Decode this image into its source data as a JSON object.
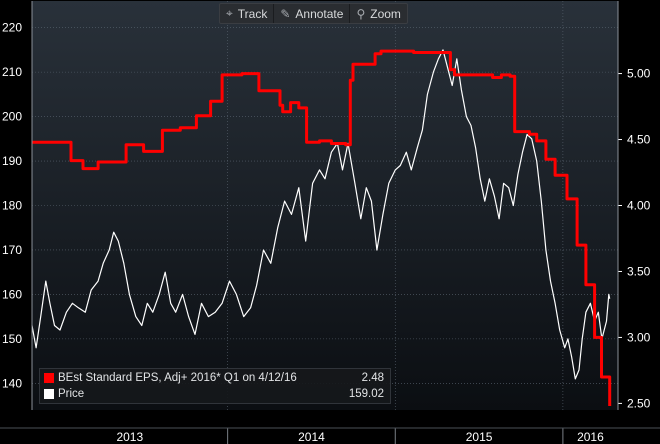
{
  "toolbar": {
    "items": [
      {
        "label": "Track",
        "icon": "crosshair-icon"
      },
      {
        "label": "Annotate",
        "icon": "pencil-icon"
      },
      {
        "label": "Zoom",
        "icon": "magnifier-icon"
      }
    ]
  },
  "legend": {
    "eps_label": "BEst Standard EPS, Adj+ 2016* Q1 on 4/12/16",
    "eps_value": "2.48",
    "price_label": "Price",
    "price_value": "159.02"
  },
  "colors": {
    "background": "#000000",
    "plot_top": "#29313a",
    "plot_bottom": "#0b0e12",
    "grid": "#5a6470",
    "eps_line": "#ff0000",
    "price_line": "#ffffff",
    "axis_text": "#ffffff"
  },
  "chart_data": {
    "type": "line",
    "title": "",
    "x_year_labels": [
      "2013",
      "2014",
      "2015",
      "2016"
    ],
    "x_range": [
      "2012-11-01",
      "2016-04-30"
    ],
    "y_left": {
      "series": "Price",
      "range": [
        134,
        226
      ],
      "ticks": [
        140,
        150,
        160,
        170,
        180,
        190,
        200,
        210,
        220
      ]
    },
    "y_right": {
      "series": "BEst Standard EPS, Adj+ 2016* Q1",
      "range": [
        2.45,
        5.55
      ],
      "ticks": [
        "2.50",
        "3.00",
        "3.50",
        "4.00",
        "4.50",
        "5.00"
      ]
    },
    "grid": true,
    "legend_position": "bottom-left",
    "series": [
      {
        "name": "BEst Standard EPS, Adj+ 2016* Q1",
        "axis": "right",
        "color": "#ff0000",
        "step": true,
        "points": [
          [
            "2012-11-01",
            4.48
          ],
          [
            "2013-01-25",
            4.34
          ],
          [
            "2013-02-20",
            4.28
          ],
          [
            "2013-03-25",
            4.33
          ],
          [
            "2013-05-25",
            4.46
          ],
          [
            "2013-07-02",
            4.41
          ],
          [
            "2013-08-12",
            4.57
          ],
          [
            "2013-09-20",
            4.59
          ],
          [
            "2013-10-25",
            4.68
          ],
          [
            "2013-11-25",
            4.79
          ],
          [
            "2013-12-20",
            4.99
          ],
          [
            "2014-02-01",
            5.0
          ],
          [
            "2014-03-10",
            4.87
          ],
          [
            "2014-04-25",
            4.76
          ],
          [
            "2014-05-01",
            4.71
          ],
          [
            "2014-05-18",
            4.78
          ],
          [
            "2014-06-05",
            4.74
          ],
          [
            "2014-06-22",
            4.48
          ],
          [
            "2014-07-20",
            4.49
          ],
          [
            "2014-08-15",
            4.47
          ],
          [
            "2014-09-15",
            4.46
          ],
          [
            "2014-09-25",
            4.95
          ],
          [
            "2014-10-01",
            5.07
          ],
          [
            "2014-11-18",
            5.15
          ],
          [
            "2014-12-01",
            5.17
          ],
          [
            "2015-02-10",
            5.16
          ],
          [
            "2015-04-10",
            5.16
          ],
          [
            "2015-05-01",
            5.03
          ],
          [
            "2015-05-10",
            4.99
          ],
          [
            "2015-08-01",
            4.97
          ],
          [
            "2015-08-20",
            4.99
          ],
          [
            "2015-09-08",
            4.98
          ],
          [
            "2015-09-18",
            4.56
          ],
          [
            "2015-10-20",
            4.54
          ],
          [
            "2015-11-05",
            4.49
          ],
          [
            "2015-11-25",
            4.35
          ],
          [
            "2015-12-15",
            4.23
          ],
          [
            "2016-01-10",
            4.05
          ],
          [
            "2016-02-01",
            3.7
          ],
          [
            "2016-02-20",
            3.4
          ],
          [
            "2016-03-10",
            3.0
          ],
          [
            "2016-03-25",
            2.7
          ],
          [
            "2016-04-12",
            2.48
          ]
        ]
      },
      {
        "name": "Price",
        "axis": "left",
        "color": "#ffffff",
        "step": false,
        "points": [
          [
            "2012-11-01",
            153
          ],
          [
            "2012-11-10",
            148
          ],
          [
            "2012-11-20",
            155
          ],
          [
            "2012-12-01",
            163
          ],
          [
            "2012-12-10",
            158
          ],
          [
            "2012-12-20",
            153
          ],
          [
            "2013-01-01",
            152
          ],
          [
            "2013-01-15",
            156
          ],
          [
            "2013-01-28",
            158
          ],
          [
            "2013-02-10",
            157
          ],
          [
            "2013-02-25",
            156
          ],
          [
            "2013-03-10",
            161
          ],
          [
            "2013-03-25",
            163
          ],
          [
            "2013-04-05",
            167
          ],
          [
            "2013-04-18",
            170
          ],
          [
            "2013-04-28",
            174
          ],
          [
            "2013-05-08",
            172
          ],
          [
            "2013-05-20",
            167
          ],
          [
            "2013-06-01",
            160
          ],
          [
            "2013-06-15",
            155
          ],
          [
            "2013-06-28",
            153
          ],
          [
            "2013-07-10",
            158
          ],
          [
            "2013-07-22",
            156
          ],
          [
            "2013-08-05",
            160
          ],
          [
            "2013-08-18",
            165
          ],
          [
            "2013-08-30",
            158
          ],
          [
            "2013-09-10",
            156
          ],
          [
            "2013-09-25",
            160
          ],
          [
            "2013-10-08",
            155
          ],
          [
            "2013-10-22",
            151
          ],
          [
            "2013-11-05",
            158
          ],
          [
            "2013-11-20",
            155
          ],
          [
            "2013-12-05",
            156
          ],
          [
            "2013-12-20",
            158
          ],
          [
            "2014-01-05",
            163
          ],
          [
            "2014-01-20",
            160
          ],
          [
            "2014-02-05",
            155
          ],
          [
            "2014-02-20",
            157
          ],
          [
            "2014-03-05",
            162
          ],
          [
            "2014-03-20",
            170
          ],
          [
            "2014-04-05",
            167
          ],
          [
            "2014-04-20",
            175
          ],
          [
            "2014-05-05",
            181
          ],
          [
            "2014-05-20",
            178
          ],
          [
            "2014-06-05",
            184
          ],
          [
            "2014-06-20",
            172
          ],
          [
            "2014-07-05",
            185
          ],
          [
            "2014-07-20",
            188
          ],
          [
            "2014-08-01",
            186
          ],
          [
            "2014-08-15",
            192
          ],
          [
            "2014-08-28",
            194
          ],
          [
            "2014-09-08",
            188
          ],
          [
            "2014-09-20",
            194
          ],
          [
            "2014-10-05",
            185
          ],
          [
            "2014-10-18",
            177
          ],
          [
            "2014-10-30",
            184
          ],
          [
            "2014-11-10",
            181
          ],
          [
            "2014-11-22",
            170
          ],
          [
            "2014-12-05",
            178
          ],
          [
            "2014-12-18",
            185
          ],
          [
            "2015-01-01",
            188
          ],
          [
            "2015-01-12",
            189
          ],
          [
            "2015-01-25",
            192
          ],
          [
            "2015-02-05",
            188
          ],
          [
            "2015-02-18",
            193
          ],
          [
            "2015-03-01",
            197
          ],
          [
            "2015-03-12",
            205
          ],
          [
            "2015-03-25",
            210
          ],
          [
            "2015-04-05",
            213
          ],
          [
            "2015-04-15",
            215
          ],
          [
            "2015-04-25",
            211
          ],
          [
            "2015-05-05",
            207
          ],
          [
            "2015-05-15",
            213
          ],
          [
            "2015-05-25",
            206
          ],
          [
            "2015-06-05",
            200
          ],
          [
            "2015-06-15",
            198
          ],
          [
            "2015-06-25",
            193
          ],
          [
            "2015-07-05",
            186
          ],
          [
            "2015-07-15",
            181
          ],
          [
            "2015-07-25",
            186
          ],
          [
            "2015-08-05",
            182
          ],
          [
            "2015-08-15",
            177
          ],
          [
            "2015-08-25",
            185
          ],
          [
            "2015-09-05",
            184
          ],
          [
            "2015-09-15",
            180
          ],
          [
            "2015-09-25",
            187
          ],
          [
            "2015-10-05",
            192
          ],
          [
            "2015-10-15",
            196
          ],
          [
            "2015-10-25",
            195
          ],
          [
            "2015-11-05",
            190
          ],
          [
            "2015-11-15",
            181
          ],
          [
            "2015-11-25",
            170
          ],
          [
            "2015-12-05",
            163
          ],
          [
            "2015-12-15",
            158
          ],
          [
            "2015-12-25",
            152
          ],
          [
            "2016-01-05",
            148
          ],
          [
            "2016-01-12",
            150
          ],
          [
            "2016-01-20",
            146
          ],
          [
            "2016-01-28",
            141
          ],
          [
            "2016-02-05",
            143
          ],
          [
            "2016-02-12",
            150
          ],
          [
            "2016-02-20",
            156
          ],
          [
            "2016-03-01",
            158
          ],
          [
            "2016-03-10",
            154
          ],
          [
            "2016-03-18",
            156
          ],
          [
            "2016-03-26",
            150
          ],
          [
            "2016-04-05",
            154
          ],
          [
            "2016-04-10",
            160
          ],
          [
            "2016-04-12",
            159.02
          ]
        ]
      }
    ]
  }
}
